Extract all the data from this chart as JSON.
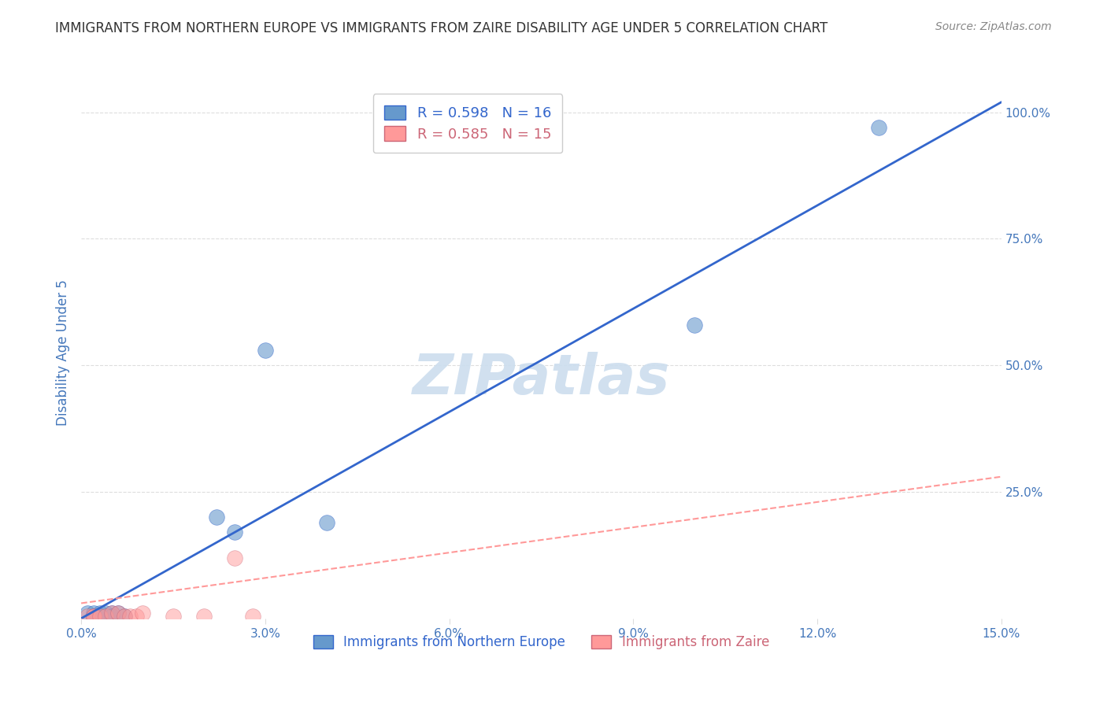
{
  "title": "IMMIGRANTS FROM NORTHERN EUROPE VS IMMIGRANTS FROM ZAIRE DISABILITY AGE UNDER 5 CORRELATION CHART",
  "source": "Source: ZipAtlas.com",
  "ylabel": "Disability Age Under 5",
  "ytick_labels": [
    "",
    "25.0%",
    "50.0%",
    "75.0%",
    "100.0%"
  ],
  "ytick_positions": [
    0,
    0.25,
    0.5,
    0.75,
    1.0
  ],
  "xtick_positions": [
    0.0,
    0.03,
    0.06,
    0.09,
    0.12,
    0.15
  ],
  "xlim": [
    0.0,
    0.15
  ],
  "ylim": [
    0.0,
    1.05
  ],
  "blue_R": 0.598,
  "blue_N": 16,
  "pink_R": 0.585,
  "pink_N": 15,
  "blue_scatter_x": [
    0.001,
    0.002,
    0.002,
    0.003,
    0.003,
    0.004,
    0.005,
    0.005,
    0.006,
    0.007,
    0.022,
    0.025,
    0.03,
    0.04,
    0.1,
    0.13
  ],
  "blue_scatter_y": [
    0.01,
    0.01,
    0.005,
    0.01,
    0.005,
    0.01,
    0.01,
    0.005,
    0.01,
    0.005,
    0.2,
    0.17,
    0.53,
    0.19,
    0.58,
    0.97
  ],
  "pink_scatter_x": [
    0.001,
    0.002,
    0.002,
    0.003,
    0.004,
    0.005,
    0.006,
    0.007,
    0.008,
    0.009,
    0.01,
    0.015,
    0.02,
    0.025,
    0.028
  ],
  "pink_scatter_y": [
    0.005,
    0.005,
    0.005,
    0.005,
    0.005,
    0.01,
    0.01,
    0.005,
    0.005,
    0.005,
    0.01,
    0.005,
    0.005,
    0.12,
    0.005
  ],
  "blue_line_x": [
    0.0,
    0.15
  ],
  "blue_line_y": [
    0.0,
    1.02
  ],
  "pink_line_x": [
    0.0,
    0.15
  ],
  "pink_line_y": [
    0.03,
    0.28
  ],
  "blue_color": "#6699CC",
  "pink_color": "#FF9999",
  "blue_line_color": "#3366CC",
  "pink_line_color": "#FF9999",
  "pink_edge_color": "#CC6677",
  "watermark": "ZIPatlas",
  "watermark_color": "#CCDDEE",
  "legend_label_blue": "Immigrants from Northern Europe",
  "legend_label_pink": "Immigrants from Zaire",
  "background_color": "#FFFFFF",
  "grid_color": "#DDDDDD",
  "title_color": "#333333",
  "axis_label_color": "#4477BB",
  "tick_label_color": "#4477BB"
}
